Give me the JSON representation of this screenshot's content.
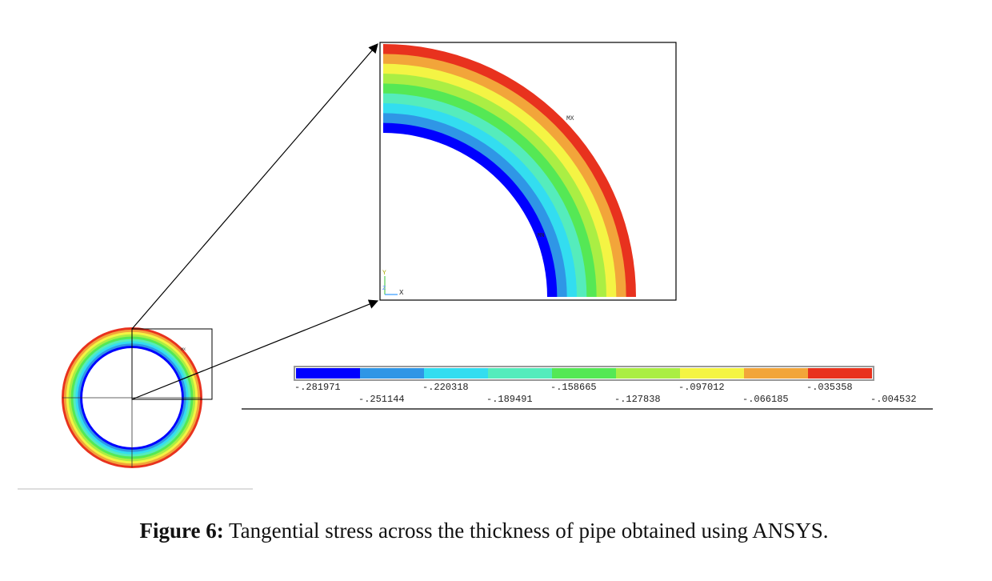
{
  "colors": [
    "#0000ff",
    "#2f96e6",
    "#33ddf0",
    "#55ecbc",
    "#55e855",
    "#aaee44",
    "#f4f444",
    "#f2a53a",
    "#e8321e"
  ],
  "legend": {
    "top_labels": [
      "-.281971",
      "-.220318",
      "-.158665",
      "-.097012",
      "-.035358"
    ],
    "bottom_labels": [
      "-.251144",
      "-.189491",
      "-.127838",
      "-.066185",
      "-.004532"
    ]
  },
  "zoom": {
    "mx_label": "MX",
    "mn_label": "MN",
    "axis_y_label": "Y",
    "axis_x_label": "X",
    "axis_z_label": "Z"
  },
  "full_pipe": {
    "mx_label": "MX"
  },
  "caption": {
    "prefix": "Figure 6:",
    "text": " Tangential stress across the thickness of pipe obtained using ANSYS."
  }
}
